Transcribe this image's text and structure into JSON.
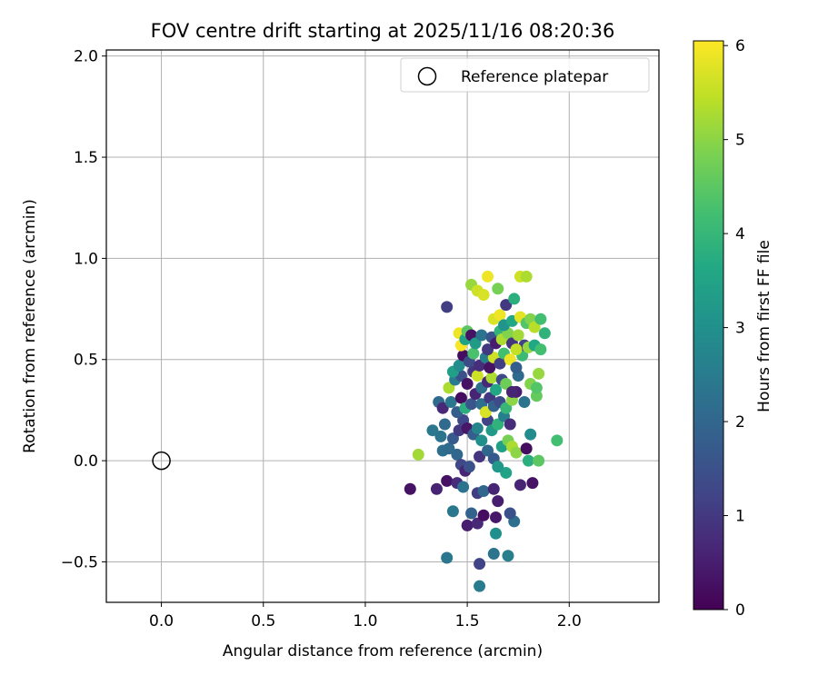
{
  "chart_data": {
    "type": "scatter",
    "title": "FOV centre drift starting at 2025/11/16 08:20:36",
    "xlabel": "Angular distance from reference (arcmin)",
    "ylabel": "Rotation from reference (arcmin)",
    "xlim": [
      -0.27,
      2.44
    ],
    "ylim": [
      -0.7,
      2.03
    ],
    "xticks": [
      0.0,
      0.5,
      1.0,
      1.5,
      2.0
    ],
    "xtick_labels": [
      "0.0",
      "0.5",
      "1.0",
      "1.5",
      "2.0"
    ],
    "yticks": [
      -0.5,
      0.0,
      0.5,
      1.0,
      1.5,
      2.0
    ],
    "ytick_labels": [
      "−0.5",
      "0.0",
      "0.5",
      "1.0",
      "1.5",
      "2.0"
    ],
    "grid": true,
    "legend": {
      "position": "top-right",
      "entries": [
        "Reference platepar"
      ]
    },
    "reference_point": {
      "x": 0.0,
      "y": 0.0,
      "label": "Reference platepar"
    },
    "colorbar": {
      "label": "Hours from first FF file",
      "min": 0,
      "max": 6.05,
      "ticks": [
        0,
        1,
        2,
        3,
        4,
        5,
        6
      ],
      "tick_labels": [
        "0",
        "1",
        "2",
        "3",
        "4",
        "5",
        "6"
      ],
      "colormap": "viridis"
    },
    "points": [
      {
        "x": 1.22,
        "y": -0.14,
        "t": 0.3
      },
      {
        "x": 1.35,
        "y": -0.14,
        "t": 0.6
      },
      {
        "x": 1.4,
        "y": -0.48,
        "t": 2.4
      },
      {
        "x": 1.56,
        "y": -0.51,
        "t": 1.2
      },
      {
        "x": 1.56,
        "y": -0.62,
        "t": 2.5
      },
      {
        "x": 1.63,
        "y": -0.46,
        "t": 2.3
      },
      {
        "x": 1.7,
        "y": -0.47,
        "t": 2.6
      },
      {
        "x": 1.64,
        "y": -0.36,
        "t": 3.0
      },
      {
        "x": 1.73,
        "y": -0.3,
        "t": 2.2
      },
      {
        "x": 1.5,
        "y": -0.32,
        "t": 0.5
      },
      {
        "x": 1.55,
        "y": -0.31,
        "t": 0.7
      },
      {
        "x": 1.52,
        "y": -0.26,
        "t": 1.9
      },
      {
        "x": 1.58,
        "y": -0.27,
        "t": 0.2
      },
      {
        "x": 1.64,
        "y": -0.28,
        "t": 0.4
      },
      {
        "x": 1.71,
        "y": -0.26,
        "t": 1.5
      },
      {
        "x": 1.43,
        "y": -0.25,
        "t": 2.4
      },
      {
        "x": 1.4,
        "y": -0.1,
        "t": 0.3
      },
      {
        "x": 1.45,
        "y": -0.11,
        "t": 0.8
      },
      {
        "x": 1.48,
        "y": -0.13,
        "t": 2.3
      },
      {
        "x": 1.55,
        "y": -0.16,
        "t": 1.1
      },
      {
        "x": 1.58,
        "y": -0.15,
        "t": 2.0
      },
      {
        "x": 1.63,
        "y": -0.14,
        "t": 0.6
      },
      {
        "x": 1.65,
        "y": -0.2,
        "t": 0.5
      },
      {
        "x": 1.69,
        "y": -0.06,
        "t": 3.5
      },
      {
        "x": 1.76,
        "y": -0.12,
        "t": 0.6
      },
      {
        "x": 1.82,
        "y": -0.11,
        "t": 0.3
      },
      {
        "x": 1.38,
        "y": 0.05,
        "t": 2.2
      },
      {
        "x": 1.41,
        "y": 0.06,
        "t": 2.1
      },
      {
        "x": 1.45,
        "y": 0.03,
        "t": 2.0
      },
      {
        "x": 1.47,
        "y": -0.02,
        "t": 1.3
      },
      {
        "x": 1.49,
        "y": -0.05,
        "t": 0.6
      },
      {
        "x": 1.51,
        "y": -0.03,
        "t": 1.5
      },
      {
        "x": 1.56,
        "y": 0.02,
        "t": 0.9
      },
      {
        "x": 1.6,
        "y": 0.05,
        "t": 2.0
      },
      {
        "x": 1.63,
        "y": 0.01,
        "t": 1.7
      },
      {
        "x": 1.65,
        "y": -0.03,
        "t": 3.2
      },
      {
        "x": 1.67,
        "y": 0.07,
        "t": 3.4
      },
      {
        "x": 1.7,
        "y": 0.1,
        "t": 4.8
      },
      {
        "x": 1.72,
        "y": 0.07,
        "t": 5.3
      },
      {
        "x": 1.74,
        "y": 0.04,
        "t": 5.0
      },
      {
        "x": 1.79,
        "y": 0.06,
        "t": 0.2
      },
      {
        "x": 1.8,
        "y": 0.0,
        "t": 3.8
      },
      {
        "x": 1.85,
        "y": 0.0,
        "t": 4.5
      },
      {
        "x": 1.94,
        "y": 0.1,
        "t": 4.2
      },
      {
        "x": 1.26,
        "y": 0.03,
        "t": 5.2
      },
      {
        "x": 1.33,
        "y": 0.15,
        "t": 2.4
      },
      {
        "x": 1.37,
        "y": 0.12,
        "t": 2.3
      },
      {
        "x": 1.39,
        "y": 0.18,
        "t": 2.1
      },
      {
        "x": 1.43,
        "y": 0.11,
        "t": 1.7
      },
      {
        "x": 1.46,
        "y": 0.15,
        "t": 1.0
      },
      {
        "x": 1.48,
        "y": 0.2,
        "t": 1.3
      },
      {
        "x": 1.5,
        "y": 0.16,
        "t": 0.4
      },
      {
        "x": 1.53,
        "y": 0.13,
        "t": 1.8
      },
      {
        "x": 1.55,
        "y": 0.16,
        "t": 2.7
      },
      {
        "x": 1.57,
        "y": 0.1,
        "t": 3.0
      },
      {
        "x": 1.6,
        "y": 0.2,
        "t": 1.2
      },
      {
        "x": 1.62,
        "y": 0.15,
        "t": 3.3
      },
      {
        "x": 1.65,
        "y": 0.18,
        "t": 3.9
      },
      {
        "x": 1.68,
        "y": 0.22,
        "t": 2.6
      },
      {
        "x": 1.71,
        "y": 0.18,
        "t": 0.8
      },
      {
        "x": 1.81,
        "y": 0.13,
        "t": 2.9
      },
      {
        "x": 1.36,
        "y": 0.29,
        "t": 2.1
      },
      {
        "x": 1.38,
        "y": 0.26,
        "t": 0.7
      },
      {
        "x": 1.42,
        "y": 0.29,
        "t": 2.4
      },
      {
        "x": 1.45,
        "y": 0.24,
        "t": 1.8
      },
      {
        "x": 1.47,
        "y": 0.31,
        "t": 0.2
      },
      {
        "x": 1.49,
        "y": 0.26,
        "t": 3.8
      },
      {
        "x": 1.52,
        "y": 0.28,
        "t": 1.6
      },
      {
        "x": 1.54,
        "y": 0.33,
        "t": 0.6
      },
      {
        "x": 1.57,
        "y": 0.28,
        "t": 2.2
      },
      {
        "x": 1.59,
        "y": 0.24,
        "t": 5.7
      },
      {
        "x": 1.61,
        "y": 0.31,
        "t": 1.0
      },
      {
        "x": 1.63,
        "y": 0.27,
        "t": 1.9
      },
      {
        "x": 1.66,
        "y": 0.29,
        "t": 1.4
      },
      {
        "x": 1.69,
        "y": 0.26,
        "t": 4.0
      },
      {
        "x": 1.72,
        "y": 0.3,
        "t": 5.0
      },
      {
        "x": 1.74,
        "y": 0.34,
        "t": 0.5
      },
      {
        "x": 1.78,
        "y": 0.29,
        "t": 2.3
      },
      {
        "x": 1.84,
        "y": 0.32,
        "t": 4.6
      },
      {
        "x": 1.41,
        "y": 0.36,
        "t": 5.3
      },
      {
        "x": 1.44,
        "y": 0.4,
        "t": 2.5
      },
      {
        "x": 1.47,
        "y": 0.42,
        "t": 1.5
      },
      {
        "x": 1.5,
        "y": 0.38,
        "t": 0.3
      },
      {
        "x": 1.53,
        "y": 0.44,
        "t": 0.9
      },
      {
        "x": 1.55,
        "y": 0.42,
        "t": 5.6
      },
      {
        "x": 1.57,
        "y": 0.36,
        "t": 2.2
      },
      {
        "x": 1.6,
        "y": 0.39,
        "t": 0.7
      },
      {
        "x": 1.62,
        "y": 0.41,
        "t": 5.3
      },
      {
        "x": 1.64,
        "y": 0.35,
        "t": 3.6
      },
      {
        "x": 1.67,
        "y": 0.4,
        "t": 1.3
      },
      {
        "x": 1.69,
        "y": 0.38,
        "t": 4.7
      },
      {
        "x": 1.72,
        "y": 0.34,
        "t": 0.6
      },
      {
        "x": 1.75,
        "y": 0.42,
        "t": 2.1
      },
      {
        "x": 1.81,
        "y": 0.38,
        "t": 4.9
      },
      {
        "x": 1.84,
        "y": 0.36,
        "t": 4.4
      },
      {
        "x": 1.85,
        "y": 0.43,
        "t": 5.1
      },
      {
        "x": 1.43,
        "y": 0.44,
        "t": 3.4
      },
      {
        "x": 1.46,
        "y": 0.47,
        "t": 2.9
      },
      {
        "x": 1.48,
        "y": 0.52,
        "t": 0.2
      },
      {
        "x": 1.51,
        "y": 0.49,
        "t": 1.4
      },
      {
        "x": 1.53,
        "y": 0.53,
        "t": 4.3
      },
      {
        "x": 1.56,
        "y": 0.47,
        "t": 0.8
      },
      {
        "x": 1.59,
        "y": 0.51,
        "t": 2.6
      },
      {
        "x": 1.61,
        "y": 0.46,
        "t": 0.3
      },
      {
        "x": 1.63,
        "y": 0.51,
        "t": 5.6
      },
      {
        "x": 1.66,
        "y": 0.48,
        "t": 1.1
      },
      {
        "x": 1.68,
        "y": 0.53,
        "t": 4.2
      },
      {
        "x": 1.71,
        "y": 0.5,
        "t": 5.9
      },
      {
        "x": 1.74,
        "y": 0.46,
        "t": 1.8
      },
      {
        "x": 1.77,
        "y": 0.52,
        "t": 4.1
      },
      {
        "x": 1.4,
        "y": 0.76,
        "t": 1.1
      },
      {
        "x": 1.46,
        "y": 0.63,
        "t": 5.9
      },
      {
        "x": 1.47,
        "y": 0.57,
        "t": 6.0
      },
      {
        "x": 1.49,
        "y": 0.6,
        "t": 3.5
      },
      {
        "x": 1.5,
        "y": 0.64,
        "t": 4.5
      },
      {
        "x": 1.52,
        "y": 0.62,
        "t": 0.3
      },
      {
        "x": 1.54,
        "y": 0.58,
        "t": 3.3
      },
      {
        "x": 1.57,
        "y": 0.62,
        "t": 2.3
      },
      {
        "x": 1.6,
        "y": 0.55,
        "t": 1.0
      },
      {
        "x": 1.62,
        "y": 0.61,
        "t": 1.6
      },
      {
        "x": 1.64,
        "y": 0.58,
        "t": 0.5
      },
      {
        "x": 1.66,
        "y": 0.64,
        "t": 3.9
      },
      {
        "x": 1.67,
        "y": 0.6,
        "t": 5.3
      },
      {
        "x": 1.7,
        "y": 0.63,
        "t": 4.9
      },
      {
        "x": 1.72,
        "y": 0.58,
        "t": 0.9
      },
      {
        "x": 1.75,
        "y": 0.62,
        "t": 5.2
      },
      {
        "x": 1.78,
        "y": 0.57,
        "t": 1.2
      },
      {
        "x": 1.8,
        "y": 0.56,
        "t": 5.1
      },
      {
        "x": 1.83,
        "y": 0.57,
        "t": 3.6
      },
      {
        "x": 1.86,
        "y": 0.55,
        "t": 4.2
      },
      {
        "x": 1.63,
        "y": 0.7,
        "t": 5.7
      },
      {
        "x": 1.66,
        "y": 0.72,
        "t": 5.9
      },
      {
        "x": 1.68,
        "y": 0.67,
        "t": 3.1
      },
      {
        "x": 1.72,
        "y": 0.69,
        "t": 3.6
      },
      {
        "x": 1.76,
        "y": 0.71,
        "t": 5.8
      },
      {
        "x": 1.79,
        "y": 0.68,
        "t": 4.4
      },
      {
        "x": 1.81,
        "y": 0.7,
        "t": 4.9
      },
      {
        "x": 1.83,
        "y": 0.66,
        "t": 5.4
      },
      {
        "x": 1.86,
        "y": 0.7,
        "t": 4.2
      },
      {
        "x": 1.88,
        "y": 0.63,
        "t": 3.9
      },
      {
        "x": 1.52,
        "y": 0.87,
        "t": 5.1
      },
      {
        "x": 1.55,
        "y": 0.84,
        "t": 5.6
      },
      {
        "x": 1.58,
        "y": 0.82,
        "t": 5.7
      },
      {
        "x": 1.6,
        "y": 0.91,
        "t": 5.9
      },
      {
        "x": 1.65,
        "y": 0.85,
        "t": 4.8
      },
      {
        "x": 1.69,
        "y": 0.77,
        "t": 1.0
      },
      {
        "x": 1.73,
        "y": 0.8,
        "t": 3.8
      },
      {
        "x": 1.76,
        "y": 0.91,
        "t": 5.6
      },
      {
        "x": 1.79,
        "y": 0.91,
        "t": 5.3
      },
      {
        "x": 1.74,
        "y": 0.55,
        "t": 5.5
      }
    ]
  }
}
